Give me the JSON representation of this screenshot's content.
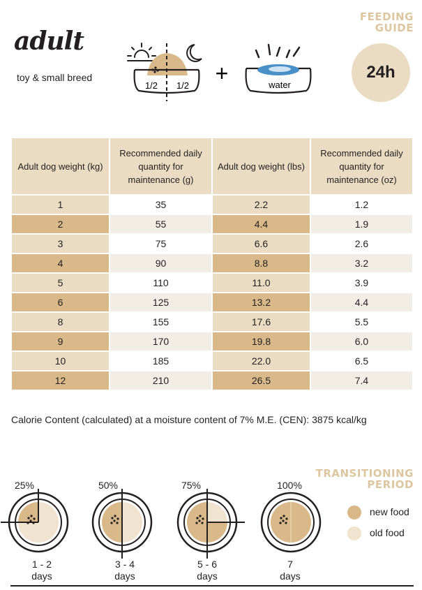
{
  "header": {
    "life_stage": "adult",
    "breed": "toy & small breed",
    "title": "FEEDING GUIDE",
    "meal_split": {
      "left": "1/2",
      "right": "1/2"
    },
    "water_label": "water",
    "plus": "+",
    "clock": "24h",
    "icons": [
      "sun-icon",
      "moon-icon",
      "food-bowl-icon",
      "water-bowl-icon"
    ]
  },
  "table": {
    "headers": [
      "Adult dog weight (kg)",
      "Recommended daily quantity for maintenance (g)",
      "Adult dog weight (lbs)",
      "Recommended daily quantity for maintenance (oz)"
    ],
    "rows": [
      [
        "1",
        "35",
        "2.2",
        "1.2"
      ],
      [
        "2",
        "55",
        "4.4",
        "1.9"
      ],
      [
        "3",
        "75",
        "6.6",
        "2.6"
      ],
      [
        "4",
        "90",
        "8.8",
        "3.2"
      ],
      [
        "5",
        "110",
        "11.0",
        "3.9"
      ],
      [
        "6",
        "125",
        "13.2",
        "4.4"
      ],
      [
        "8",
        "155",
        "17.6",
        "5.5"
      ],
      [
        "9",
        "170",
        "19.8",
        "6.0"
      ],
      [
        "10",
        "185",
        "22.0",
        "6.5"
      ],
      [
        "12",
        "210",
        "26.5",
        "7.4"
      ]
    ]
  },
  "calorie_note": "Calorie Content (calculated) at a moisture content of 7% M.E. (CEN): 3875 kcal/kg",
  "transition": {
    "title": "TRANSITIONING PERIOD",
    "steps": [
      {
        "percent": "25%",
        "days": "1 - 2",
        "unit": "days",
        "new_fraction": 0.25
      },
      {
        "percent": "50%",
        "days": "3 - 4",
        "unit": "days",
        "new_fraction": 0.5
      },
      {
        "percent": "75%",
        "days": "5 - 6",
        "unit": "days",
        "new_fraction": 0.75
      },
      {
        "percent": "100%",
        "days": "7",
        "unit": "days",
        "new_fraction": 1.0
      }
    ],
    "legend": [
      {
        "label": "new food",
        "color": "#d9b98a"
      },
      {
        "label": "old food",
        "color": "#f0e4d0"
      }
    ]
  },
  "colors": {
    "tan": "#d9b98a",
    "beige": "#eadcc2",
    "cream": "#f0e4d0",
    "title": "#dcc7a0",
    "water": "#4a90c8"
  }
}
